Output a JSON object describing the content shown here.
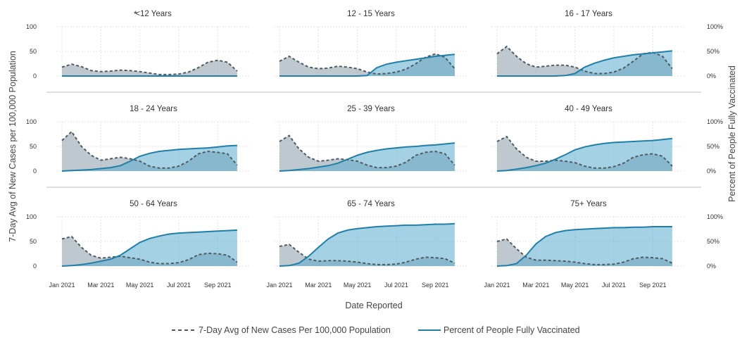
{
  "chart_data": {
    "type": "area",
    "xlabel": "Date Reported",
    "ylabel_left": "7-Day Avg of New Cases per 100,000 Population",
    "ylabel_right": "Percent of People Fully Vaccinated",
    "x_ticks": [
      "Jan 2021",
      "Mar 2021",
      "May 2021",
      "Jul 2021",
      "Sep 2021"
    ],
    "x_tick_months": [
      0,
      2,
      4,
      6,
      8
    ],
    "y_left_ticks": [
      "0",
      "50",
      "100"
    ],
    "y_right_ticks": [
      "0%",
      "50%",
      "100%"
    ],
    "ylim_left": [
      0,
      100
    ],
    "ylim_right": [
      0,
      100
    ],
    "legend": {
      "position": "bottom",
      "items": [
        {
          "label": "7-Day Avg of New Cases Per 100,000 Population",
          "style": "dashed",
          "color": "#4f5b63"
        },
        {
          "label": "Percent of People Fully Vaccinated",
          "style": "solid",
          "color": "#1f7fa8"
        }
      ]
    },
    "x_months": [
      0,
      0.5,
      1,
      1.5,
      2,
      2.5,
      3,
      3.5,
      4,
      4.5,
      5,
      5.5,
      6,
      6.5,
      7,
      7.5,
      8,
      8.5,
      9
    ],
    "panels": [
      {
        "title": "<12 Years",
        "marker": "*",
        "cases": [
          18,
          24,
          19,
          11,
          9,
          10,
          12,
          11,
          9,
          6,
          3,
          3,
          4,
          8,
          17,
          28,
          32,
          28,
          10
        ],
        "vaccinated": [
          0,
          0,
          0,
          0,
          0,
          0,
          0,
          0,
          0,
          0,
          0,
          0,
          0,
          0,
          0,
          0,
          0,
          0,
          0
        ]
      },
      {
        "title": "12 - 15 Years",
        "cases": [
          30,
          40,
          28,
          18,
          15,
          16,
          20,
          18,
          15,
          8,
          4,
          5,
          8,
          14,
          25,
          38,
          45,
          38,
          15
        ],
        "vaccinated": [
          0,
          0,
          0,
          0,
          0,
          0,
          0,
          0,
          0,
          1,
          17,
          24,
          28,
          31,
          34,
          37,
          40,
          42,
          44
        ]
      },
      {
        "title": "16 - 17 Years",
        "cases": [
          45,
          60,
          40,
          25,
          18,
          20,
          22,
          22,
          18,
          10,
          5,
          5,
          8,
          16,
          30,
          45,
          48,
          40,
          15
        ],
        "vaccinated": [
          0,
          0,
          0,
          0,
          0,
          0,
          0,
          1,
          5,
          18,
          26,
          32,
          37,
          40,
          43,
          45,
          47,
          49,
          51
        ]
      },
      {
        "title": "18 - 24 Years",
        "cases": [
          62,
          80,
          50,
          32,
          22,
          25,
          28,
          25,
          20,
          10,
          6,
          6,
          10,
          20,
          35,
          40,
          38,
          35,
          12
        ],
        "vaccinated": [
          0,
          1,
          2,
          3,
          5,
          7,
          11,
          20,
          30,
          36,
          40,
          42,
          44,
          45,
          46,
          47,
          49,
          51,
          52
        ]
      },
      {
        "title": "25 - 39 Years",
        "cases": [
          60,
          72,
          45,
          28,
          20,
          22,
          25,
          23,
          20,
          12,
          7,
          7,
          10,
          18,
          32,
          38,
          40,
          35,
          12
        ],
        "vaccinated": [
          0,
          1,
          3,
          5,
          8,
          11,
          16,
          24,
          32,
          38,
          42,
          45,
          47,
          49,
          50,
          52,
          53,
          55,
          57
        ]
      },
      {
        "title": "40 - 49 Years",
        "cases": [
          60,
          70,
          45,
          28,
          20,
          20,
          22,
          20,
          17,
          10,
          6,
          6,
          9,
          16,
          28,
          33,
          35,
          30,
          10
        ],
        "vaccinated": [
          0,
          1,
          4,
          7,
          11,
          16,
          24,
          33,
          43,
          49,
          53,
          56,
          58,
          59,
          60,
          61,
          62,
          64,
          66
        ]
      },
      {
        "title": "50 - 64 Years",
        "cases": [
          55,
          60,
          38,
          22,
          16,
          18,
          20,
          17,
          14,
          8,
          5,
          5,
          7,
          13,
          23,
          26,
          25,
          22,
          8
        ],
        "vaccinated": [
          0,
          1,
          3,
          6,
          10,
          14,
          22,
          35,
          48,
          56,
          61,
          65,
          67,
          68,
          69,
          70,
          71,
          72,
          73
        ]
      },
      {
        "title": "65 - 74 Years",
        "cases": [
          40,
          44,
          28,
          14,
          10,
          11,
          11,
          10,
          8,
          5,
          3,
          3,
          4,
          8,
          14,
          18,
          17,
          15,
          6
        ],
        "vaccinated": [
          0,
          1,
          6,
          20,
          38,
          55,
          67,
          73,
          76,
          78,
          80,
          81,
          82,
          83,
          83,
          84,
          85,
          85,
          86
        ]
      },
      {
        "title": "75+ Years",
        "cases": [
          50,
          55,
          35,
          18,
          12,
          12,
          11,
          10,
          8,
          5,
          3,
          3,
          4,
          8,
          15,
          18,
          17,
          15,
          6
        ],
        "vaccinated": [
          0,
          1,
          5,
          22,
          45,
          60,
          68,
          72,
          74,
          75,
          76,
          77,
          78,
          78,
          79,
          79,
          80,
          80,
          80
        ]
      }
    ]
  }
}
